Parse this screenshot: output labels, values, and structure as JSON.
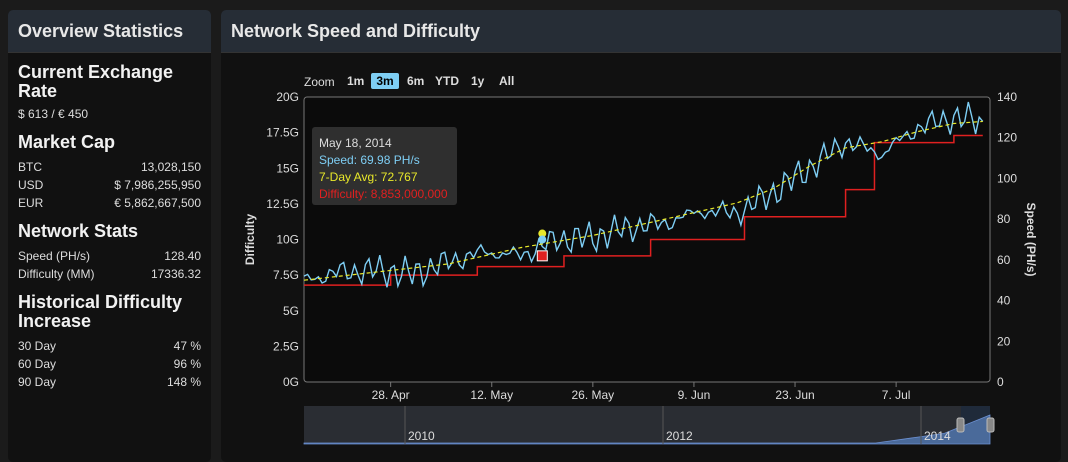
{
  "left": {
    "title": "Overview Statistics",
    "exchange": {
      "heading": "Current Exchange Rate",
      "value": "$ 613 / € 450"
    },
    "market_cap": {
      "heading": "Market Cap",
      "rows": [
        {
          "label": "BTC",
          "value": "13,028,150"
        },
        {
          "label": "USD",
          "value": "$ 7,986,255,950"
        },
        {
          "label": "EUR",
          "value": "€ 5,862,667,500"
        }
      ]
    },
    "network": {
      "heading": "Network Stats",
      "rows": [
        {
          "label": "Speed (PH/s)",
          "value": "128.40"
        },
        {
          "label": "Difficulty (MM)",
          "value": "17336.32"
        }
      ]
    },
    "historical": {
      "heading": "Historical Difficulty Increase",
      "rows": [
        {
          "label": "30 Day",
          "value": "47 %"
        },
        {
          "label": "60 Day",
          "value": "96 %"
        },
        {
          "label": "90 Day",
          "value": "148 %"
        }
      ]
    }
  },
  "right": {
    "title": "Network Speed and Difficulty",
    "zoom_label": "Zoom",
    "zoom_buttons": [
      "1m",
      "3m",
      "6m",
      "YTD",
      "1y",
      "All"
    ],
    "zoom_selected": "3m",
    "tooltip": {
      "date": "May 18, 2014",
      "speed": "Speed: 69.98 PH/s",
      "avg": "7-Day Avg: 72.767",
      "difficulty": "Difficulty: 8,853,000,000"
    },
    "navigator_labels": [
      "2010",
      "2012",
      "2014"
    ]
  },
  "colors": {
    "speed": "#7ecef4",
    "avg": "#e8e82a",
    "difficulty": "#e02020",
    "zoom_active": "#7ecef4"
  },
  "chart_data": {
    "type": "line",
    "xlabel": "",
    "x_ticks": [
      "28. Apr",
      "12. May",
      "26. May",
      "9. Jun",
      "23. Jun",
      "7. Jul"
    ],
    "y_left": {
      "label": "Difficulty",
      "ticks": [
        "0G",
        "2.5G",
        "5G",
        "7.5G",
        "10G",
        "12.5G",
        "15G",
        "17.5G",
        "20G"
      ],
      "ylim": [
        0,
        20
      ]
    },
    "y_right": {
      "label": "Speed (PH/s)",
      "ticks": [
        "0",
        "20",
        "40",
        "60",
        "80",
        "100",
        "120",
        "140"
      ],
      "ylim": [
        0,
        140
      ]
    },
    "series": [
      {
        "name": "Speed",
        "axis": "right",
        "x_days": [
          0,
          5,
          10,
          15,
          20,
          25,
          30,
          35,
          40,
          45,
          50,
          55,
          60,
          65,
          70,
          75,
          80,
          85,
          90,
          94
        ],
        "values": [
          50,
          54,
          55,
          53,
          59,
          64,
          62,
          70,
          71,
          76,
          78,
          84,
          83,
          93,
          105,
          118,
          112,
          125,
          130,
          128
        ]
      },
      {
        "name": "7-Day Avg",
        "axis": "right",
        "x_days": [
          0,
          5,
          10,
          15,
          20,
          25,
          30,
          35,
          40,
          45,
          50,
          55,
          60,
          65,
          70,
          75,
          80,
          85,
          90,
          94
        ],
        "values": [
          50,
          52,
          54,
          56,
          58,
          62,
          66,
          69,
          72,
          76,
          80,
          84,
          88,
          95,
          106,
          115,
          118,
          123,
          127,
          128
        ]
      },
      {
        "name": "Difficulty",
        "axis": "left",
        "x_days": [
          0,
          12,
          12,
          24,
          24,
          36,
          36,
          48,
          48,
          61,
          61,
          75,
          75,
          79,
          79,
          90,
          90,
          94
        ],
        "values": [
          6.8,
          6.8,
          7.5,
          7.5,
          8.1,
          8.1,
          8.85,
          8.85,
          10,
          10,
          11.6,
          11.6,
          13.5,
          13.5,
          16.8,
          16.8,
          17.3,
          17.3
        ]
      }
    ]
  }
}
